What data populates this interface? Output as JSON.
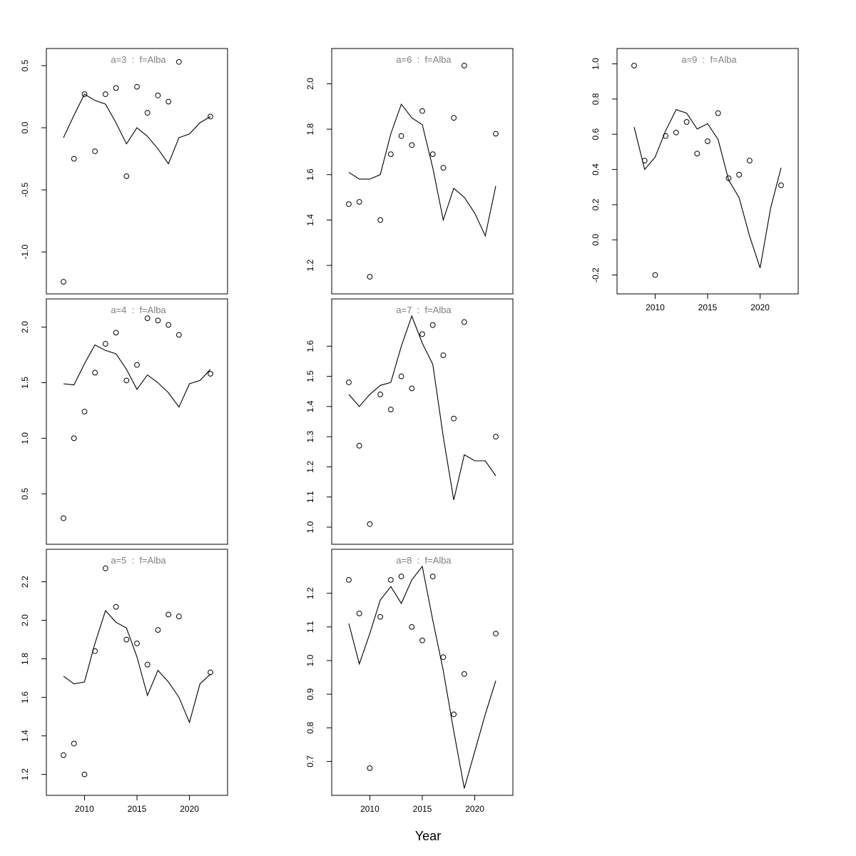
{
  "xlabel": "Year",
  "chart_data": [
    {
      "type": "line+scatter",
      "title": "a=3  :  f=Alba",
      "xlim": [
        2008,
        2022
      ],
      "ylim": [
        -1.2,
        0.5
      ],
      "yticks": [
        -1.0,
        -0.5,
        0.0,
        0.5
      ],
      "xticks": [
        2010,
        2015,
        2020
      ],
      "line": {
        "x": [
          2008,
          2009,
          2010,
          2011,
          2012,
          2013,
          2014,
          2015,
          2016,
          2017,
          2018,
          2019,
          2020,
          2021,
          2022
        ],
        "y": [
          -0.08,
          0.1,
          0.27,
          0.22,
          0.19,
          0.04,
          -0.13,
          0.0,
          -0.07,
          -0.17,
          -0.29,
          -0.08,
          -0.05,
          0.04,
          0.09
        ]
      },
      "points": {
        "x": [
          2008,
          2009,
          2010,
          2011,
          2012,
          2013,
          2014,
          2015,
          2016,
          2017,
          2018,
          2019,
          2022
        ],
        "y": [
          -1.24,
          -0.25,
          0.27,
          -0.19,
          0.27,
          0.32,
          -0.39,
          0.33,
          0.12,
          0.26,
          0.21,
          0.53,
          0.09
        ]
      }
    },
    {
      "type": "line+scatter",
      "title": "a=4  :  f=Alba",
      "xlim": [
        2008,
        2022
      ],
      "ylim": [
        0.2,
        2.1
      ],
      "yticks": [
        0.5,
        1.0,
        1.5,
        2.0
      ],
      "xticks": [
        2010,
        2015,
        2020
      ],
      "line": {
        "x": [
          2008,
          2009,
          2010,
          2011,
          2012,
          2013,
          2014,
          2015,
          2016,
          2017,
          2018,
          2019,
          2020,
          2021,
          2022
        ],
        "y": [
          1.49,
          1.48,
          1.67,
          1.84,
          1.79,
          1.76,
          1.62,
          1.44,
          1.57,
          1.5,
          1.41,
          1.28,
          1.49,
          1.52,
          1.62
        ]
      },
      "points": {
        "x": [
          2008,
          2009,
          2010,
          2011,
          2012,
          2013,
          2014,
          2015,
          2016,
          2017,
          2018,
          2019,
          2022
        ],
        "y": [
          0.28,
          1.0,
          1.24,
          1.59,
          1.85,
          1.95,
          1.52,
          1.66,
          2.08,
          2.06,
          2.02,
          1.93,
          1.58
        ]
      }
    },
    {
      "type": "line+scatter",
      "title": "a=5  :  f=Alba",
      "xlim": [
        2008,
        2022
      ],
      "ylim": [
        1.18,
        2.28
      ],
      "yticks": [
        1.2,
        1.4,
        1.6,
        1.8,
        2.0,
        2.2
      ],
      "xticks": [
        2010,
        2015,
        2020
      ],
      "line": {
        "x": [
          2008,
          2009,
          2010,
          2011,
          2012,
          2013,
          2014,
          2015,
          2016,
          2017,
          2018,
          2019,
          2020,
          2021,
          2022
        ],
        "y": [
          1.71,
          1.67,
          1.68,
          1.88,
          2.05,
          1.99,
          1.96,
          1.81,
          1.61,
          1.74,
          1.68,
          1.6,
          1.47,
          1.67,
          1.72
        ]
      },
      "points": {
        "x": [
          2008,
          2009,
          2010,
          2011,
          2012,
          2013,
          2014,
          2015,
          2016,
          2017,
          2018,
          2019,
          2022
        ],
        "y": [
          1.3,
          1.36,
          1.2,
          1.84,
          2.27,
          2.07,
          1.9,
          1.88,
          1.77,
          1.95,
          2.03,
          2.02,
          1.73
        ]
      }
    },
    {
      "type": "line+scatter",
      "title": "a=6  :  f=Alba",
      "xlim": [
        2008,
        2022
      ],
      "ylim": [
        1.15,
        2.08
      ],
      "yticks": [
        1.2,
        1.4,
        1.6,
        1.8,
        2.0
      ],
      "xticks": [
        2010,
        2015,
        2020
      ],
      "line": {
        "x": [
          2008,
          2009,
          2010,
          2011,
          2012,
          2013,
          2014,
          2015,
          2016,
          2017,
          2018,
          2019,
          2020,
          2021,
          2022
        ],
        "y": [
          1.61,
          1.58,
          1.58,
          1.6,
          1.78,
          1.91,
          1.85,
          1.82,
          1.63,
          1.4,
          1.54,
          1.5,
          1.43,
          1.33,
          1.55
        ]
      },
      "points": {
        "x": [
          2008,
          2009,
          2010,
          2011,
          2012,
          2013,
          2014,
          2015,
          2016,
          2017,
          2018,
          2019,
          2022
        ],
        "y": [
          1.47,
          1.48,
          1.15,
          1.4,
          1.69,
          1.77,
          1.73,
          1.88,
          1.69,
          1.63,
          1.85,
          2.08,
          1.78
        ]
      }
    },
    {
      "type": "line+scatter",
      "title": "a=7  :  f=Alba",
      "xlim": [
        2008,
        2022
      ],
      "ylim": [
        1.0,
        1.7
      ],
      "yticks": [
        1.0,
        1.1,
        1.2,
        1.3,
        1.4,
        1.5,
        1.6
      ],
      "xticks": [
        2010,
        2015,
        2020
      ],
      "line": {
        "x": [
          2008,
          2009,
          2010,
          2011,
          2012,
          2013,
          2014,
          2015,
          2016,
          2017,
          2018,
          2019,
          2020,
          2021,
          2022
        ],
        "y": [
          1.44,
          1.4,
          1.44,
          1.47,
          1.48,
          1.6,
          1.7,
          1.61,
          1.54,
          1.3,
          1.09,
          1.24,
          1.22,
          1.22,
          1.17
        ]
      },
      "points": {
        "x": [
          2008,
          2009,
          2010,
          2011,
          2012,
          2013,
          2014,
          2015,
          2016,
          2017,
          2018,
          2019,
          2022
        ],
        "y": [
          1.48,
          1.27,
          1.01,
          1.44,
          1.39,
          1.5,
          1.46,
          1.64,
          1.67,
          1.57,
          1.36,
          1.68,
          1.3
        ]
      }
    },
    {
      "type": "line+scatter",
      "title": "a=8  :  f=Alba",
      "xlim": [
        2008,
        2022
      ],
      "ylim": [
        0.65,
        1.28
      ],
      "yticks": [
        0.7,
        0.8,
        0.9,
        1.0,
        1.1,
        1.2
      ],
      "xticks": [
        2010,
        2015,
        2020
      ],
      "line": {
        "x": [
          2008,
          2009,
          2010,
          2011,
          2012,
          2013,
          2014,
          2015,
          2016,
          2017,
          2018,
          2019,
          2020,
          2021,
          2022
        ],
        "y": [
          1.11,
          0.99,
          1.08,
          1.18,
          1.22,
          1.17,
          1.24,
          1.28,
          1.12,
          0.97,
          0.79,
          0.62,
          0.73,
          0.84,
          0.94
        ]
      },
      "points": {
        "x": [
          2008,
          2009,
          2010,
          2011,
          2012,
          2013,
          2014,
          2015,
          2016,
          2017,
          2018,
          2019,
          2022
        ],
        "y": [
          1.24,
          1.14,
          0.68,
          1.13,
          1.24,
          1.25,
          1.1,
          1.06,
          1.25,
          1.01,
          0.84,
          0.96,
          1.08
        ]
      }
    },
    {
      "type": "line+scatter",
      "title": "a=9  :  f=Alba",
      "xlim": [
        2008,
        2022
      ],
      "ylim": [
        -0.21,
        0.99
      ],
      "yticks": [
        -0.2,
        0.0,
        0.2,
        0.4,
        0.6,
        0.8,
        1.0
      ],
      "xticks": [
        2010,
        2015,
        2020
      ],
      "line": {
        "x": [
          2008,
          2009,
          2010,
          2011,
          2012,
          2013,
          2014,
          2015,
          2016,
          2017,
          2018,
          2019,
          2020,
          2021,
          2022
        ],
        "y": [
          0.64,
          0.4,
          0.47,
          0.62,
          0.74,
          0.72,
          0.63,
          0.66,
          0.57,
          0.34,
          0.24,
          0.02,
          -0.16,
          0.18,
          0.41
        ]
      },
      "points": {
        "x": [
          2008,
          2009,
          2010,
          2011,
          2012,
          2013,
          2014,
          2015,
          2016,
          2017,
          2018,
          2019,
          2022
        ],
        "y": [
          0.99,
          0.45,
          -0.2,
          0.59,
          0.61,
          0.67,
          0.49,
          0.56,
          0.72,
          0.35,
          0.37,
          0.45,
          0.31
        ]
      }
    }
  ]
}
